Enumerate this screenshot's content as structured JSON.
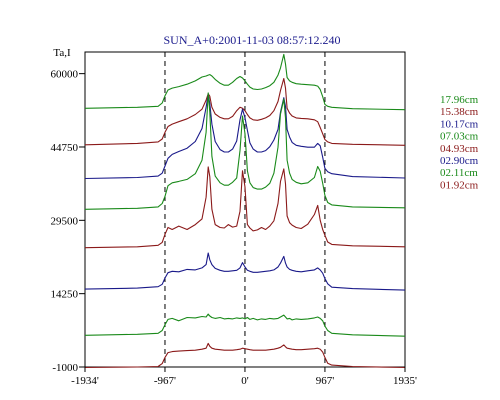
{
  "chart_data": {
    "type": "line",
    "title": "SUN_A+0:2001-11-03 08:57:12.240",
    "ylabel": "Ta,I",
    "xlabel": "",
    "x_tick_labels": [
      "-1934'",
      "-967'",
      "0'",
      "967'",
      "1935'"
    ],
    "x_ticks": [
      -1934,
      -967,
      0,
      967,
      1935
    ],
    "xlim": [
      -1934,
      1935
    ],
    "y_tick_labels": [
      "60000",
      "44750",
      "29500",
      "14250",
      "-1000"
    ],
    "y_ticks": [
      60000,
      44750,
      29500,
      14250,
      -1000
    ],
    "ylim": [
      -1000,
      64500
    ],
    "grid": false,
    "reference_lines_x": [
      -967,
      0,
      967
    ],
    "legend_position": "right",
    "profile_x": [
      -1934,
      -1300,
      -1050,
      -1000,
      -967,
      -930,
      -880,
      -800,
      -700,
      -600,
      -520,
      -470,
      -445,
      -425,
      -400,
      -360,
      -300,
      -250,
      -200,
      -150,
      -100,
      -60,
      -30,
      0,
      30,
      60,
      100,
      150,
      200,
      250,
      300,
      350,
      400,
      430,
      470,
      490,
      510,
      540,
      570,
      620,
      680,
      760,
      840,
      880,
      910,
      940,
      967,
      1000,
      1050,
      1300,
      1935
    ],
    "series": [
      {
        "name": "17.96cm",
        "color": "#1a8a1a",
        "values": [
          52800,
          53000,
          53200,
          53900,
          55400,
          56600,
          57000,
          57300,
          57800,
          58500,
          59300,
          59500,
          59700,
          59800,
          59500,
          58800,
          58000,
          57600,
          57600,
          58200,
          59000,
          59400,
          59100,
          58500,
          57800,
          57200,
          56800,
          56700,
          56800,
          57100,
          57500,
          58200,
          59700,
          61200,
          64000,
          62000,
          59200,
          58500,
          58200,
          57900,
          57800,
          57700,
          57600,
          57400,
          56700,
          55200,
          53600,
          53200,
          53000,
          52700,
          52500
        ]
      },
      {
        "name": "15.38cm",
        "color": "#8b1a1a",
        "values": [
          45200,
          45500,
          45800,
          46400,
          47800,
          49000,
          49500,
          50000,
          50600,
          51500,
          52600,
          54500,
          55800,
          55300,
          53000,
          51600,
          50900,
          50600,
          50600,
          51100,
          52300,
          53000,
          52800,
          52300,
          51500,
          50800,
          50400,
          50300,
          50500,
          50800,
          51300,
          52300,
          54200,
          56500,
          59000,
          57000,
          52800,
          51800,
          51200,
          50800,
          50700,
          50600,
          50400,
          50000,
          48800,
          47500,
          46300,
          45800,
          45500,
          45300,
          45100
        ]
      },
      {
        "name": "10.17cm",
        "color": "#1a1a8a",
        "values": [
          38200,
          38400,
          38700,
          39300,
          40800,
          42400,
          43200,
          43800,
          44500,
          45900,
          48600,
          53000,
          55700,
          53800,
          49500,
          45900,
          44200,
          43700,
          43700,
          44300,
          46000,
          50400,
          52600,
          50800,
          48200,
          45600,
          44300,
          43700,
          43700,
          44000,
          44800,
          46200,
          48400,
          52000,
          55000,
          53200,
          48400,
          46800,
          45700,
          45100,
          44900,
          44700,
          44700,
          45500,
          45000,
          42600,
          40300,
          39600,
          39200,
          38600,
          38300
        ]
      },
      {
        "name": "07.03cm",
        "color": "#1a8a1a",
        "values": [
          31800,
          32000,
          32300,
          33000,
          34500,
          36700,
          37300,
          37600,
          38000,
          39200,
          42000,
          47800,
          56000,
          52000,
          42800,
          38700,
          37300,
          36800,
          36800,
          37400,
          38300,
          44000,
          51200,
          47500,
          39800,
          37300,
          36300,
          36000,
          36000,
          36400,
          37200,
          39300,
          44700,
          51600,
          54700,
          50800,
          42000,
          39300,
          38000,
          37400,
          37100,
          37300,
          38400,
          40700,
          39700,
          37200,
          34700,
          33200,
          32700,
          32300,
          32100
        ]
      },
      {
        "name": "04.93cm",
        "color": "#8b1a1a",
        "values": [
          23800,
          24000,
          24300,
          24900,
          26600,
          28000,
          27600,
          28300,
          27600,
          28600,
          29800,
          34300,
          40600,
          38600,
          31800,
          28600,
          28000,
          27900,
          28600,
          28100,
          28300,
          31400,
          39800,
          36400,
          28600,
          27900,
          27300,
          27500,
          28000,
          27600,
          28300,
          29400,
          33000,
          37600,
          40200,
          37100,
          30400,
          29000,
          28500,
          28000,
          27800,
          28700,
          30700,
          32600,
          29500,
          27600,
          26400,
          25000,
          24500,
          24200,
          24000
        ]
      },
      {
        "name": "02.90cm",
        "color": "#1a1a8a",
        "values": [
          15200,
          15400,
          15700,
          16200,
          17500,
          18600,
          18900,
          18800,
          19300,
          19200,
          19600,
          20300,
          22700,
          21300,
          20300,
          19500,
          19100,
          18900,
          18900,
          19000,
          19100,
          19600,
          20700,
          19800,
          19100,
          18900,
          18700,
          18700,
          18800,
          18900,
          19000,
          19200,
          19800,
          20600,
          22000,
          20600,
          19800,
          19300,
          19100,
          18900,
          18800,
          19000,
          19200,
          19600,
          19200,
          18500,
          17400,
          16300,
          15600,
          15300,
          15000
        ]
      },
      {
        "name": "02.11cm",
        "color": "#1a8a1a",
        "values": [
          5600,
          5800,
          6000,
          6600,
          7800,
          8900,
          9100,
          8600,
          9300,
          9200,
          9500,
          9400,
          10000,
          9600,
          9300,
          9100,
          9300,
          9000,
          9100,
          9000,
          9200,
          9100,
          9200,
          9000,
          9300,
          8900,
          9100,
          8800,
          9000,
          8900,
          9100,
          9000,
          9100,
          9400,
          9800,
          9400,
          9000,
          9100,
          8800,
          9000,
          8900,
          9000,
          9200,
          9400,
          9100,
          8600,
          7500,
          6600,
          6000,
          5700,
          5400
        ]
      },
      {
        "name": "01.92cm",
        "color": "#8b1a1a",
        "values": [
          -1100,
          -1000,
          -900,
          -300,
          1000,
          2000,
          2200,
          2300,
          2400,
          2500,
          2700,
          2900,
          3900,
          3300,
          2900,
          2700,
          2600,
          2500,
          2500,
          2500,
          2600,
          2700,
          2900,
          2800,
          2700,
          2600,
          2500,
          2500,
          2500,
          2500,
          2600,
          2700,
          2900,
          3100,
          3600,
          3200,
          2900,
          2800,
          2700,
          2600,
          2600,
          2700,
          2800,
          2900,
          2700,
          2100,
          1000,
          -200,
          -600,
          -900,
          -1100
        ]
      }
    ]
  }
}
